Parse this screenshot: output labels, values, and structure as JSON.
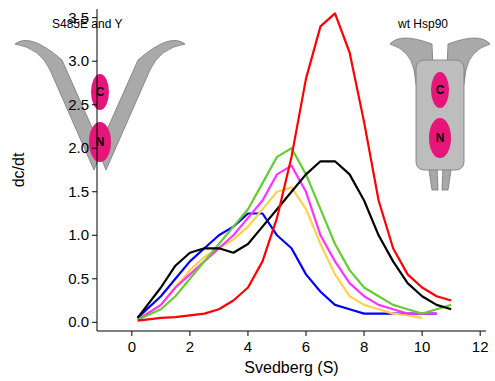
{
  "chart_data": {
    "type": "line",
    "x_label": "Svedberg (S)",
    "y_label": "dc/dt",
    "x": [
      0.2,
      1,
      1.5,
      2,
      2.5,
      3,
      3.5,
      4,
      4.5,
      5,
      5.5,
      6,
      6.5,
      7,
      7.5,
      8,
      8.5,
      9,
      9.5,
      10,
      10.5,
      11
    ],
    "series": [
      {
        "color": "#0000ff",
        "values": [
          0.05,
          0.3,
          0.5,
          0.7,
          0.85,
          1.0,
          1.1,
          1.25,
          1.25,
          1.0,
          0.85,
          0.55,
          0.35,
          0.2,
          0.15,
          0.1,
          0.1,
          0.1,
          0.1,
          0.1,
          0.1,
          null
        ]
      },
      {
        "color": "#ffd24d",
        "values": [
          0.02,
          0.2,
          0.4,
          0.6,
          0.75,
          0.85,
          0.95,
          1.1,
          1.3,
          1.5,
          1.55,
          1.3,
          0.9,
          0.55,
          0.3,
          0.2,
          0.15,
          0.1,
          0.08,
          0.05,
          null,
          null
        ]
      },
      {
        "color": "#ff33ff",
        "values": [
          0.03,
          0.2,
          0.4,
          0.55,
          0.7,
          0.85,
          1.0,
          1.2,
          1.4,
          1.7,
          1.8,
          1.5,
          1.0,
          0.7,
          0.45,
          0.3,
          0.2,
          0.15,
          0.1,
          0.1,
          0.1,
          null
        ]
      },
      {
        "color": "#66cc33",
        "values": [
          0.03,
          0.15,
          0.3,
          0.5,
          0.7,
          0.9,
          1.1,
          1.3,
          1.6,
          1.9,
          2.0,
          1.7,
          1.3,
          0.9,
          0.6,
          0.4,
          0.3,
          0.2,
          0.15,
          0.1,
          0.15,
          0.2
        ]
      },
      {
        "color": "#000000",
        "values": [
          0.05,
          0.4,
          0.65,
          0.8,
          0.85,
          0.85,
          0.8,
          0.9,
          1.1,
          1.3,
          1.5,
          1.7,
          1.85,
          1.85,
          1.7,
          1.4,
          1.0,
          0.7,
          0.45,
          0.3,
          0.2,
          0.15
        ]
      },
      {
        "color": "#ff0000",
        "values": [
          0.02,
          0.05,
          0.06,
          0.08,
          0.1,
          0.15,
          0.25,
          0.4,
          0.7,
          1.2,
          1.9,
          2.8,
          3.4,
          3.55,
          3.1,
          2.3,
          1.4,
          0.85,
          0.55,
          0.4,
          0.3,
          0.25
        ]
      }
    ],
    "xlim": [
      -1.2,
      12.2
    ],
    "xticks": [
      0,
      2,
      4,
      6,
      8,
      10,
      12
    ],
    "ylim": [
      -0.1,
      3.6
    ],
    "yticks": [
      {
        "value": 0,
        "label": "0.0"
      },
      {
        "value": 0.5,
        "label": "0.5"
      },
      {
        "value": 1,
        "label": "1.0"
      },
      {
        "value": 1.5,
        "label": "1.5"
      },
      {
        "value": 2,
        "label": "2.0"
      },
      {
        "value": 2.5,
        "label": "2.5"
      },
      {
        "value": 3,
        "label": "3.0"
      },
      {
        "value": 3.5,
        "label": "3.5"
      }
    ],
    "grid": false,
    "annotations": [
      {
        "text": "S485E and Y"
      },
      {
        "text": "wt Hsp90"
      },
      {
        "text": "C"
      },
      {
        "text": "N"
      },
      {
        "text": "C"
      },
      {
        "text": "N"
      }
    ]
  }
}
